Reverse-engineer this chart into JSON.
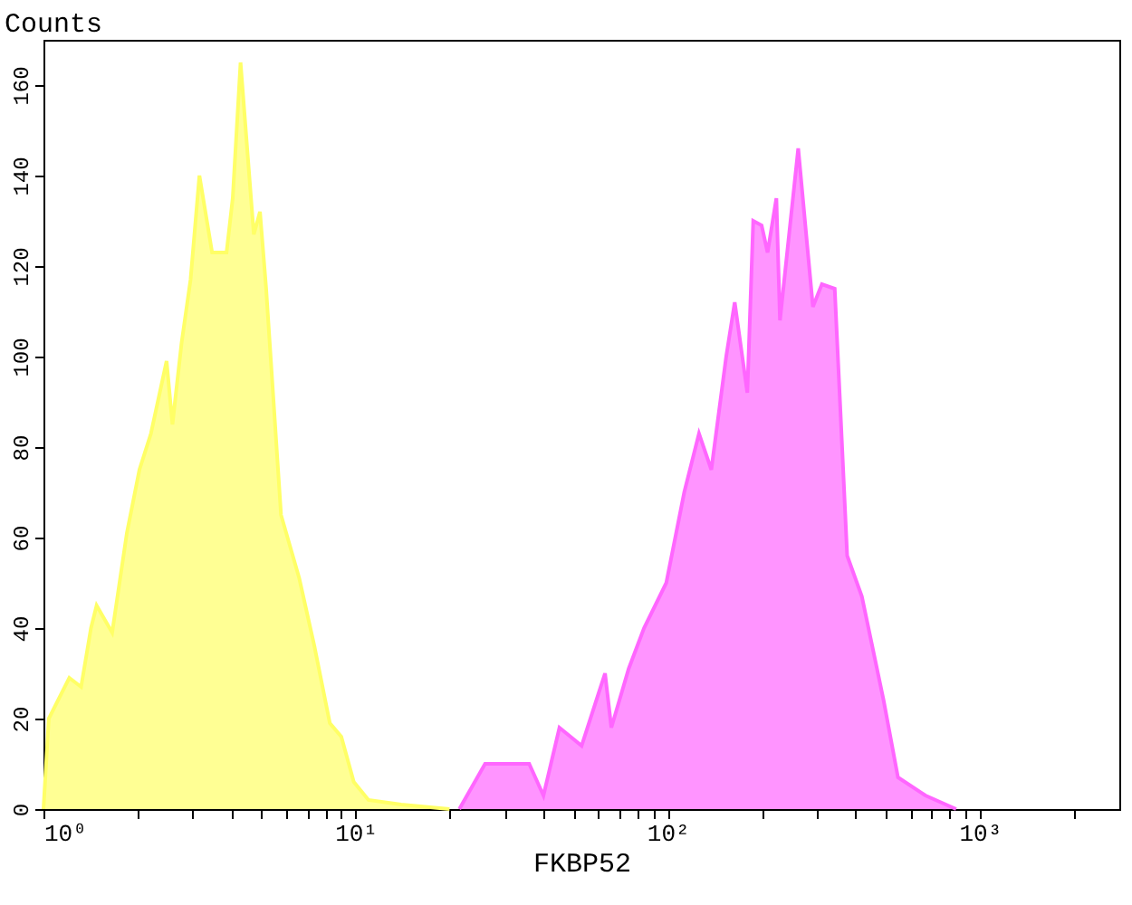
{
  "chart_data": {
    "type": "area",
    "xlabel": "FKBP52",
    "ylabel": "Counts",
    "log": "x",
    "grid": false,
    "xlim": [
      1,
      2800
    ],
    "ylim": [
      0,
      170
    ],
    "xticks": [
      {
        "value": 1,
        "label": "10⁰"
      },
      {
        "value": 2,
        "label": null
      },
      {
        "value": 3,
        "label": null
      },
      {
        "value": 4,
        "label": null
      },
      {
        "value": 5,
        "label": null
      },
      {
        "value": 6,
        "label": null
      },
      {
        "value": 7,
        "label": null
      },
      {
        "value": 8,
        "label": null
      },
      {
        "value": 9,
        "label": null
      },
      {
        "value": 10,
        "label": "10¹"
      },
      {
        "value": 20,
        "label": null
      },
      {
        "value": 30,
        "label": null
      },
      {
        "value": 40,
        "label": null
      },
      {
        "value": 50,
        "label": null
      },
      {
        "value": 60,
        "label": null
      },
      {
        "value": 70,
        "label": null
      },
      {
        "value": 80,
        "label": null
      },
      {
        "value": 90,
        "label": null
      },
      {
        "value": 100,
        "label": "10²"
      },
      {
        "value": 200,
        "label": null
      },
      {
        "value": 300,
        "label": null
      },
      {
        "value": 400,
        "label": null
      },
      {
        "value": 500,
        "label": null
      },
      {
        "value": 600,
        "label": null
      },
      {
        "value": 700,
        "label": null
      },
      {
        "value": 800,
        "label": null
      },
      {
        "value": 900,
        "label": null
      },
      {
        "value": 1000,
        "label": "10³"
      },
      {
        "value": 2000,
        "label": null
      }
    ],
    "yticks": [
      0,
      20,
      40,
      60,
      80,
      100,
      120,
      140,
      160
    ],
    "series": [
      {
        "color": "#ffff66",
        "x": [
          1.0,
          1.04,
          1.21,
          1.32,
          1.42,
          1.48,
          1.66,
          1.85,
          2.03,
          2.21,
          2.48,
          2.59,
          2.77,
          2.96,
          3.16,
          3.47,
          3.86,
          4.04,
          4.28,
          4.72,
          4.94,
          5.17,
          5.77,
          6.6,
          7.38,
          8.27,
          9.0,
          9.87,
          11,
          14,
          20
        ],
        "values": [
          0,
          20,
          29,
          27,
          40,
          45,
          39,
          61,
          75,
          83,
          99,
          85,
          103,
          117,
          140,
          123,
          123,
          135,
          165,
          127,
          132,
          115,
          65,
          51,
          36,
          19,
          16,
          6,
          2,
          1,
          0
        ]
      },
      {
        "color": "#ff66ff",
        "x": [
          21.5,
          26,
          36,
          40,
          45,
          53,
          63,
          66,
          75,
          84,
          99,
          113,
          126,
          138,
          154,
          164,
          180,
          188,
          200,
          209,
          223,
          229,
          262,
          292,
          312,
          343,
          376,
          419,
          492,
          547,
          670,
          840
        ],
        "values": [
          0,
          10,
          10,
          3,
          18,
          14,
          30,
          18,
          31,
          40,
          50,
          70,
          83,
          75,
          100,
          112,
          92,
          130,
          129,
          123,
          135,
          108,
          146,
          111,
          116,
          115,
          56,
          47,
          24,
          7,
          3,
          0
        ]
      }
    ]
  }
}
